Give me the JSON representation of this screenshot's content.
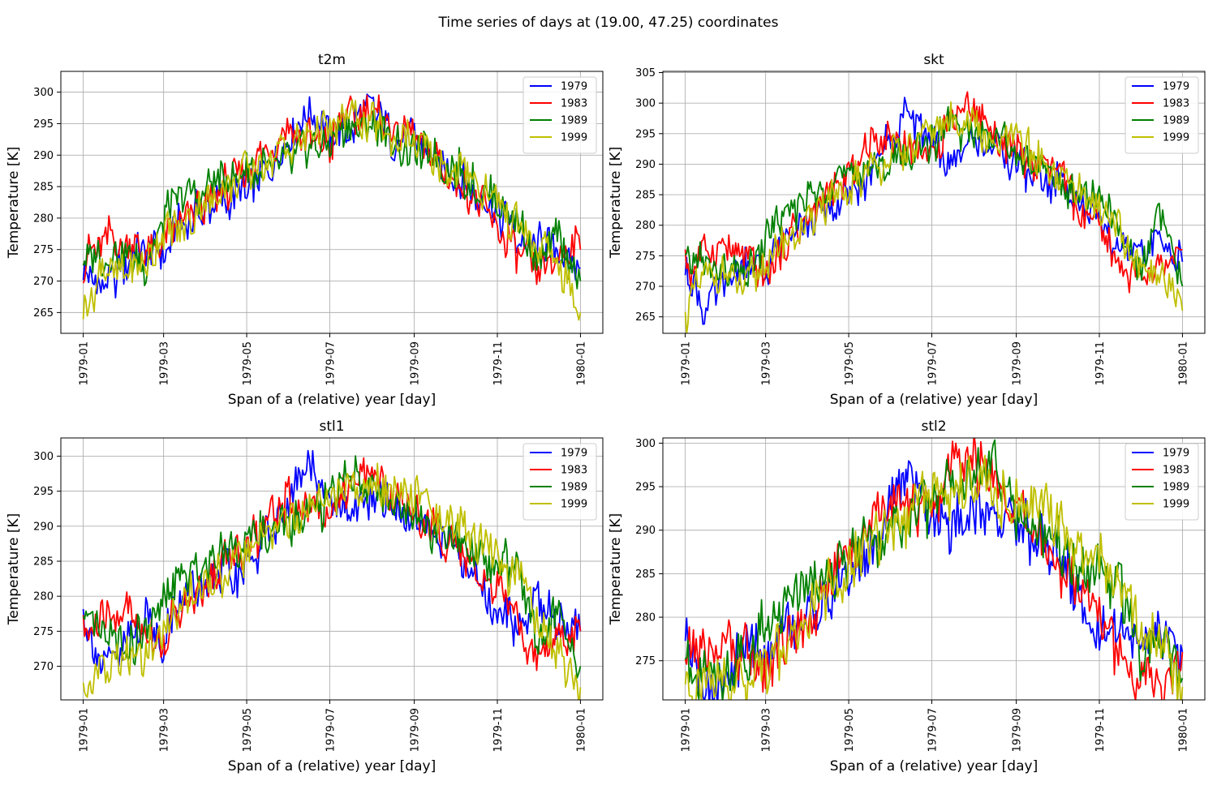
{
  "figure": {
    "title": "Time series of days at (19.00, 47.25) coordinates"
  },
  "colors": {
    "1979": "#0000ff",
    "1983": "#ff0000",
    "1989": "#008000",
    "1999": "#bfbf00"
  },
  "chart_data": [
    {
      "type": "line",
      "title": "t2m",
      "xlabel": "Span of a (relative) year [day]",
      "ylabel": "Temperature [K]",
      "x_range": [
        "1979-01-01",
        "1980-01-01"
      ],
      "x_ticks": [
        "1979-01",
        "1979-03",
        "1979-05",
        "1979-07",
        "1979-09",
        "1979-11",
        "1980-01"
      ],
      "ylim": [
        261.7,
        303.3
      ],
      "y_ticks": [
        265,
        270,
        275,
        280,
        285,
        290,
        295,
        300
      ],
      "grid": true,
      "legend": "top-right",
      "x": [
        "1979-01-01",
        "1979-01-15",
        "1979-02-01",
        "1979-02-15",
        "1979-03-01",
        "1979-03-15",
        "1979-04-01",
        "1979-04-15",
        "1979-05-01",
        "1979-05-15",
        "1979-06-01",
        "1979-06-15",
        "1979-07-01",
        "1979-07-15",
        "1979-08-01",
        "1979-08-15",
        "1979-09-01",
        "1979-09-15",
        "1979-10-01",
        "1979-10-15",
        "1979-11-01",
        "1979-11-15",
        "1979-12-01",
        "1979-12-15",
        "1980-01-01"
      ],
      "series": [
        {
          "name": "1979",
          "values": [
            272.5,
            268,
            273,
            276,
            275,
            280,
            281,
            283,
            284,
            288,
            293,
            297,
            293,
            294,
            297,
            293,
            292,
            290,
            286,
            284,
            281,
            277,
            276,
            275,
            272
          ]
        },
        {
          "name": "1983",
          "values": [
            273,
            277,
            276,
            275,
            276,
            279,
            282,
            285,
            287,
            291,
            294,
            293,
            292,
            296,
            297,
            294,
            293,
            290,
            286,
            283,
            279,
            275,
            271,
            274,
            275
          ]
        },
        {
          "name": "1989",
          "values": [
            275,
            274,
            273,
            272,
            280,
            283,
            284,
            286,
            287,
            288,
            289,
            291,
            292,
            296,
            294,
            292,
            291,
            289,
            288,
            285,
            283,
            280,
            272,
            278,
            270
          ]
        },
        {
          "name": "1999",
          "values": [
            264,
            273,
            271,
            272,
            277,
            279,
            282,
            285,
            287,
            289,
            291,
            293,
            294,
            296,
            295,
            293,
            292,
            290,
            288,
            286,
            282,
            279,
            275,
            273,
            265
          ]
        }
      ]
    },
    {
      "type": "line",
      "title": "skt",
      "xlabel": "Span of a (relative) year [day]",
      "ylabel": "Temperature [K]",
      "x_range": [
        "1979-01-01",
        "1980-01-01"
      ],
      "x_ticks": [
        "1979-01",
        "1979-03",
        "1979-05",
        "1979-07",
        "1979-09",
        "1979-11",
        "1980-01"
      ],
      "ylim": [
        262.3,
        305.2
      ],
      "y_ticks": [
        265,
        270,
        275,
        280,
        285,
        290,
        295,
        300,
        305
      ],
      "grid": true,
      "legend": "top-right",
      "x": [
        "1979-01-01",
        "1979-01-15",
        "1979-02-01",
        "1979-02-15",
        "1979-03-01",
        "1979-03-15",
        "1979-04-01",
        "1979-04-15",
        "1979-05-01",
        "1979-05-15",
        "1979-06-01",
        "1979-06-15",
        "1979-07-01",
        "1979-07-15",
        "1979-08-01",
        "1979-08-15",
        "1979-09-01",
        "1979-09-15",
        "1979-10-01",
        "1979-10-15",
        "1979-11-01",
        "1979-11-15",
        "1979-12-01",
        "1979-12-15",
        "1980-01-01"
      ],
      "series": [
        {
          "name": "1979",
          "values": [
            272,
            266,
            271,
            273,
            272,
            279,
            281,
            282,
            284,
            288,
            294,
            299,
            293,
            290,
            294,
            292,
            290,
            288,
            287,
            285,
            279,
            278,
            276,
            277,
            274
          ]
        },
        {
          "name": "1983",
          "values": [
            273,
            275,
            276,
            274,
            271,
            278,
            281,
            284,
            288,
            292,
            294,
            293,
            292,
            297,
            300,
            295,
            292,
            290,
            288,
            284,
            279,
            274,
            270,
            272,
            276
          ]
        },
        {
          "name": "1989",
          "values": [
            274,
            274,
            273,
            272,
            278,
            282,
            284,
            287,
            288,
            289,
            290,
            292,
            293,
            297,
            294,
            295,
            292,
            289,
            288,
            285,
            284,
            279,
            274,
            282,
            270
          ]
        },
        {
          "name": "1999",
          "values": [
            265,
            272,
            273,
            270,
            274,
            277,
            281,
            284,
            286,
            289,
            291,
            293,
            294,
            298,
            296,
            293,
            293,
            292,
            289,
            286,
            283,
            279,
            272,
            271,
            266
          ]
        }
      ]
    },
    {
      "type": "line",
      "title": "stl1",
      "xlabel": "Span of a (relative) year [day]",
      "ylabel": "Temperature [K]",
      "x_range": [
        "1979-01-01",
        "1980-01-01"
      ],
      "x_ticks": [
        "1979-01",
        "1979-03",
        "1979-05",
        "1979-07",
        "1979-09",
        "1979-11",
        "1980-01"
      ],
      "ylim": [
        265.2,
        302.6
      ],
      "y_ticks": [
        270,
        275,
        280,
        285,
        290,
        295,
        300
      ],
      "grid": true,
      "legend": "top-right",
      "x": [
        "1979-01-01",
        "1979-01-15",
        "1979-02-01",
        "1979-02-15",
        "1979-03-01",
        "1979-03-15",
        "1979-04-01",
        "1979-04-15",
        "1979-05-01",
        "1979-05-15",
        "1979-06-01",
        "1979-06-15",
        "1979-07-01",
        "1979-07-15",
        "1979-08-01",
        "1979-08-15",
        "1979-09-01",
        "1979-09-15",
        "1979-10-01",
        "1979-10-15",
        "1979-11-01",
        "1979-11-15",
        "1979-12-01",
        "1979-12-15",
        "1980-01-01"
      ],
      "series": [
        {
          "name": "1979",
          "values": [
            277,
            268,
            273,
            276,
            274,
            280,
            282,
            283,
            284,
            288,
            294,
            298,
            293,
            292,
            294,
            293,
            291,
            289,
            287,
            283,
            278,
            276,
            280,
            277,
            275
          ]
        },
        {
          "name": "1983",
          "values": [
            274,
            277,
            278,
            275,
            274,
            278,
            281,
            285,
            287,
            291,
            294,
            293,
            292,
            296,
            298,
            295,
            293,
            290,
            287,
            284,
            281,
            277,
            270,
            273,
            275
          ]
        },
        {
          "name": "1989",
          "values": [
            275,
            275,
            273,
            274,
            279,
            282,
            284,
            287,
            288,
            289,
            290,
            292,
            293,
            298,
            295,
            294,
            291,
            289,
            289,
            286,
            285,
            284,
            274,
            279,
            270
          ]
        },
        {
          "name": "1999",
          "values": [
            267,
            271,
            271,
            272,
            276,
            279,
            281,
            284,
            286,
            289,
            291,
            293,
            294,
            296,
            295,
            295,
            294,
            293,
            291,
            288,
            285,
            283,
            277,
            273,
            267
          ]
        }
      ]
    },
    {
      "type": "line",
      "title": "stl2",
      "xlabel": "Span of a (relative) year [day]",
      "ylabel": "Temperature [K]",
      "x_range": [
        "1979-01-01",
        "1980-01-01"
      ],
      "x_ticks": [
        "1979-01",
        "1979-03",
        "1979-05",
        "1979-07",
        "1979-09",
        "1979-11",
        "1980-01"
      ],
      "ylim": [
        270.5,
        300.6
      ],
      "y_ticks": [
        275,
        280,
        285,
        290,
        295,
        300
      ],
      "grid": true,
      "legend": "top-right",
      "x": [
        "1979-01-01",
        "1979-01-15",
        "1979-02-01",
        "1979-02-15",
        "1979-03-01",
        "1979-03-15",
        "1979-04-01",
        "1979-04-15",
        "1979-05-01",
        "1979-05-15",
        "1979-06-01",
        "1979-06-15",
        "1979-07-01",
        "1979-07-15",
        "1979-08-01",
        "1979-08-15",
        "1979-09-01",
        "1979-09-15",
        "1979-10-01",
        "1979-10-15",
        "1979-11-01",
        "1979-11-15",
        "1979-12-01",
        "1979-12-15",
        "1980-01-01"
      ],
      "series": [
        {
          "name": "1979",
          "values": [
            278.5,
            273,
            273.5,
            276,
            275,
            279,
            281,
            282,
            284,
            288,
            293,
            297,
            292,
            290,
            293,
            292,
            291,
            289,
            287,
            283,
            278,
            279,
            277,
            278,
            276
          ]
        },
        {
          "name": "1983",
          "values": [
            276,
            277,
            277,
            276,
            274,
            277,
            280,
            284,
            286,
            290,
            294,
            293,
            292,
            297,
            298,
            296,
            292,
            290,
            286,
            284,
            281,
            276,
            273,
            272,
            276
          ]
        },
        {
          "name": "1989",
          "values": [
            276,
            273,
            274,
            275,
            279,
            281,
            283,
            285,
            287,
            288,
            289,
            291,
            293,
            296,
            297,
            297,
            292,
            290,
            289,
            286,
            285,
            284,
            276,
            279,
            273
          ]
        },
        {
          "name": "1999",
          "values": [
            272,
            272,
            273,
            273,
            274,
            277,
            280,
            283,
            285,
            288,
            290,
            292,
            294,
            295,
            296,
            294,
            293,
            293,
            291,
            288,
            286,
            284,
            278,
            277,
            272
          ]
        }
      ]
    }
  ]
}
